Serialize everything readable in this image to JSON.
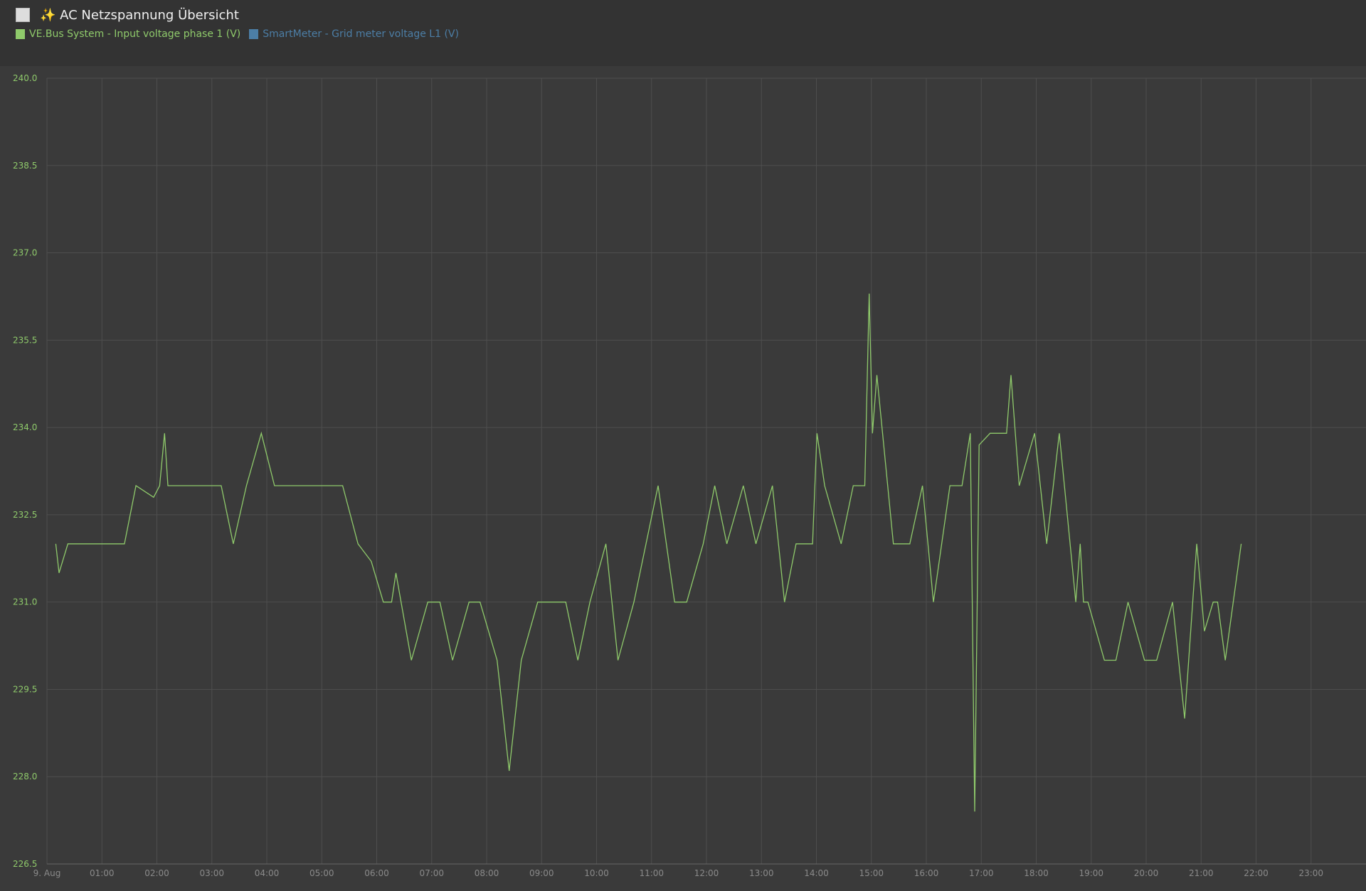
{
  "chart_data": {
    "type": "line",
    "title": "✨ AC Netzspannung Übersicht",
    "series": [
      {
        "name": "VE.Bus System  -  Input voltage phase 1 (V)",
        "color": "#8fca6b",
        "x": [
          0.16,
          0.22,
          0.38,
          1.41,
          1.62,
          1.94,
          2.05,
          2.14,
          2.2,
          3.17,
          3.39,
          3.63,
          3.9,
          4.14,
          5.38,
          5.66,
          5.9,
          6.12,
          6.27,
          6.35,
          6.63,
          6.93,
          7.15,
          7.38,
          7.68,
          7.88,
          8.19,
          8.41,
          8.63,
          8.93,
          9.44,
          9.66,
          9.88,
          10.17,
          10.39,
          10.68,
          11.12,
          11.42,
          11.64,
          11.94,
          12.15,
          12.37,
          12.67,
          12.9,
          13.2,
          13.42,
          13.63,
          13.93,
          14.01,
          14.15,
          14.45,
          14.67,
          14.88,
          14.96,
          15.02,
          15.1,
          15.4,
          15.7,
          15.93,
          16.13,
          16.43,
          16.65,
          16.8,
          16.88,
          16.96,
          17.16,
          17.46,
          17.54,
          17.69,
          17.97,
          18.19,
          18.42,
          18.72,
          18.8,
          18.86,
          18.94,
          19.24,
          19.45,
          19.67,
          19.97,
          20.19,
          20.48,
          20.7,
          20.92,
          21.06,
          21.22,
          21.3,
          21.44,
          21.73
        ],
        "values": [
          232.0,
          231.5,
          232.0,
          232.0,
          233.0,
          232.8,
          233.0,
          233.9,
          233.0,
          233.0,
          232.0,
          233.0,
          233.9,
          233.0,
          233.0,
          232.0,
          231.7,
          231.0,
          231.0,
          231.5,
          230.0,
          231.0,
          231.0,
          230.0,
          231.0,
          231.0,
          230.0,
          228.1,
          230.0,
          231.0,
          231.0,
          230.0,
          231.0,
          232.0,
          230.0,
          231.0,
          233.0,
          231.0,
          231.0,
          232.0,
          233.0,
          232.0,
          233.0,
          232.0,
          233.0,
          231.0,
          232.0,
          232.0,
          233.9,
          233.0,
          232.0,
          233.0,
          233.0,
          236.3,
          233.9,
          234.9,
          232.0,
          232.0,
          233.0,
          231.0,
          233.0,
          233.0,
          233.9,
          227.4,
          233.7,
          233.9,
          233.9,
          234.9,
          233.0,
          233.9,
          232.0,
          233.9,
          231.0,
          232.0,
          231.0,
          231.0,
          230.0,
          230.0,
          231.0,
          230.0,
          230.0,
          231.0,
          229.0,
          232.0,
          230.5,
          231.0,
          231.0,
          230.0,
          232.0
        ]
      },
      {
        "name": "SmartMeter  -  Grid meter voltage L1 (V)",
        "color": "#4c7ea6",
        "x": [],
        "values": []
      }
    ],
    "xlim": [
      0,
      24
    ],
    "xticks": [
      {
        "value": 0,
        "label": "9. Aug"
      },
      {
        "value": 1,
        "label": "01:00"
      },
      {
        "value": 2,
        "label": "02:00"
      },
      {
        "value": 3,
        "label": "03:00"
      },
      {
        "value": 4,
        "label": "04:00"
      },
      {
        "value": 5,
        "label": "05:00"
      },
      {
        "value": 6,
        "label": "06:00"
      },
      {
        "value": 7,
        "label": "07:00"
      },
      {
        "value": 8,
        "label": "08:00"
      },
      {
        "value": 9,
        "label": "09:00"
      },
      {
        "value": 10,
        "label": "10:00"
      },
      {
        "value": 11,
        "label": "11:00"
      },
      {
        "value": 12,
        "label": "12:00"
      },
      {
        "value": 13,
        "label": "13:00"
      },
      {
        "value": 14,
        "label": "14:00"
      },
      {
        "value": 15,
        "label": "15:00"
      },
      {
        "value": 16,
        "label": "16:00"
      },
      {
        "value": 17,
        "label": "17:00"
      },
      {
        "value": 18,
        "label": "18:00"
      },
      {
        "value": 19,
        "label": "19:00"
      },
      {
        "value": 20,
        "label": "20:00"
      },
      {
        "value": 21,
        "label": "21:00"
      },
      {
        "value": 22,
        "label": "22:00"
      },
      {
        "value": 23,
        "label": "23:00"
      }
    ],
    "ylim": [
      226.5,
      240
    ],
    "yticks": [
      226.5,
      {
        "value": 228,
        "label": "228.0"
      },
      229.5,
      {
        "value": 231,
        "label": "231.0"
      },
      232.5,
      {
        "value": 234,
        "label": "234.0"
      },
      235.5,
      {
        "value": 237,
        "label": "237.0"
      },
      238.5,
      {
        "value": 240,
        "label": "240.0"
      }
    ],
    "grid": true
  }
}
